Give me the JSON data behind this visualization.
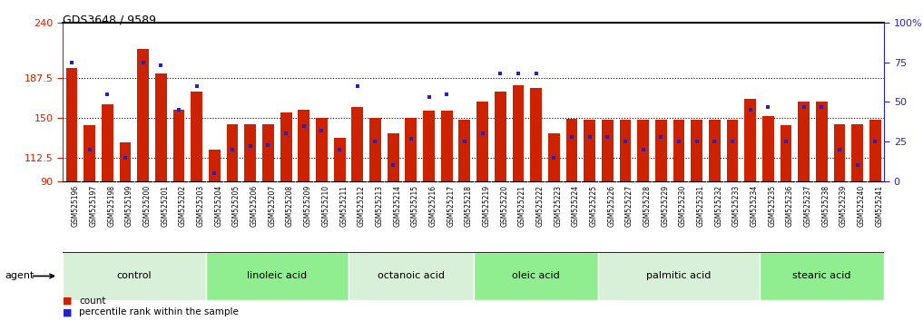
{
  "title": "GDS3648 / 9589",
  "samples": [
    "GSM525196",
    "GSM525197",
    "GSM525198",
    "GSM525199",
    "GSM525200",
    "GSM525201",
    "GSM525202",
    "GSM525203",
    "GSM525204",
    "GSM525205",
    "GSM525206",
    "GSM525207",
    "GSM525208",
    "GSM525209",
    "GSM525210",
    "GSM525211",
    "GSM525212",
    "GSM525213",
    "GSM525214",
    "GSM525215",
    "GSM525216",
    "GSM525217",
    "GSM525218",
    "GSM525219",
    "GSM525220",
    "GSM525221",
    "GSM525222",
    "GSM525223",
    "GSM525224",
    "GSM525225",
    "GSM525226",
    "GSM525227",
    "GSM525228",
    "GSM525229",
    "GSM525230",
    "GSM525231",
    "GSM525232",
    "GSM525233",
    "GSM525234",
    "GSM525235",
    "GSM525236",
    "GSM525237",
    "GSM525238",
    "GSM525239",
    "GSM525240",
    "GSM525241"
  ],
  "counts": [
    197,
    143,
    163,
    127,
    215,
    192,
    158,
    175,
    120,
    144,
    144,
    144,
    155,
    158,
    150,
    131,
    160,
    150,
    135,
    150,
    157,
    157,
    148,
    165,
    175,
    181,
    178,
    135,
    149,
    148,
    148,
    148,
    148,
    148,
    148,
    148,
    148,
    148,
    168,
    152,
    143,
    165,
    165,
    144,
    144,
    148
  ],
  "percentile_ranks_pct": [
    75,
    20,
    55,
    15,
    75,
    73,
    45,
    60,
    5,
    20,
    22,
    23,
    30,
    35,
    32,
    20,
    60,
    25,
    10,
    27,
    53,
    55,
    25,
    30,
    68,
    68,
    68,
    15,
    28,
    28,
    28,
    25,
    20,
    28,
    25,
    25,
    25,
    25,
    45,
    47,
    25,
    47,
    47,
    20,
    10,
    25
  ],
  "groups": [
    {
      "name": "control",
      "start": 0,
      "end": 7
    },
    {
      "name": "linoleic acid",
      "start": 8,
      "end": 15
    },
    {
      "name": "octanoic acid",
      "start": 16,
      "end": 22
    },
    {
      "name": "oleic acid",
      "start": 23,
      "end": 29
    },
    {
      "name": "palmitic acid",
      "start": 30,
      "end": 38
    },
    {
      "name": "stearic acid",
      "start": 39,
      "end": 45
    }
  ],
  "group_colors": [
    "#d8f0d8",
    "#90ee90",
    "#d8f0d8",
    "#90ee90",
    "#d8f0d8",
    "#90ee90"
  ],
  "ymin": 90,
  "ymax": 240,
  "yticks_left": [
    90,
    112.5,
    150,
    187.5,
    240
  ],
  "yticks_right_pct": [
    0,
    25,
    50,
    75,
    100
  ],
  "yticks_right_labels": [
    "0",
    "25",
    "50",
    "75",
    "100%"
  ],
  "bar_color": "#cc2200",
  "dot_color": "#2222cc",
  "left_tick_color": "#cc2200",
  "right_tick_color": "#2222cc",
  "xticklabel_bg": "#c8c8c8",
  "title_fontsize": 9,
  "bar_fontsize": 5.5,
  "group_fontsize": 8
}
